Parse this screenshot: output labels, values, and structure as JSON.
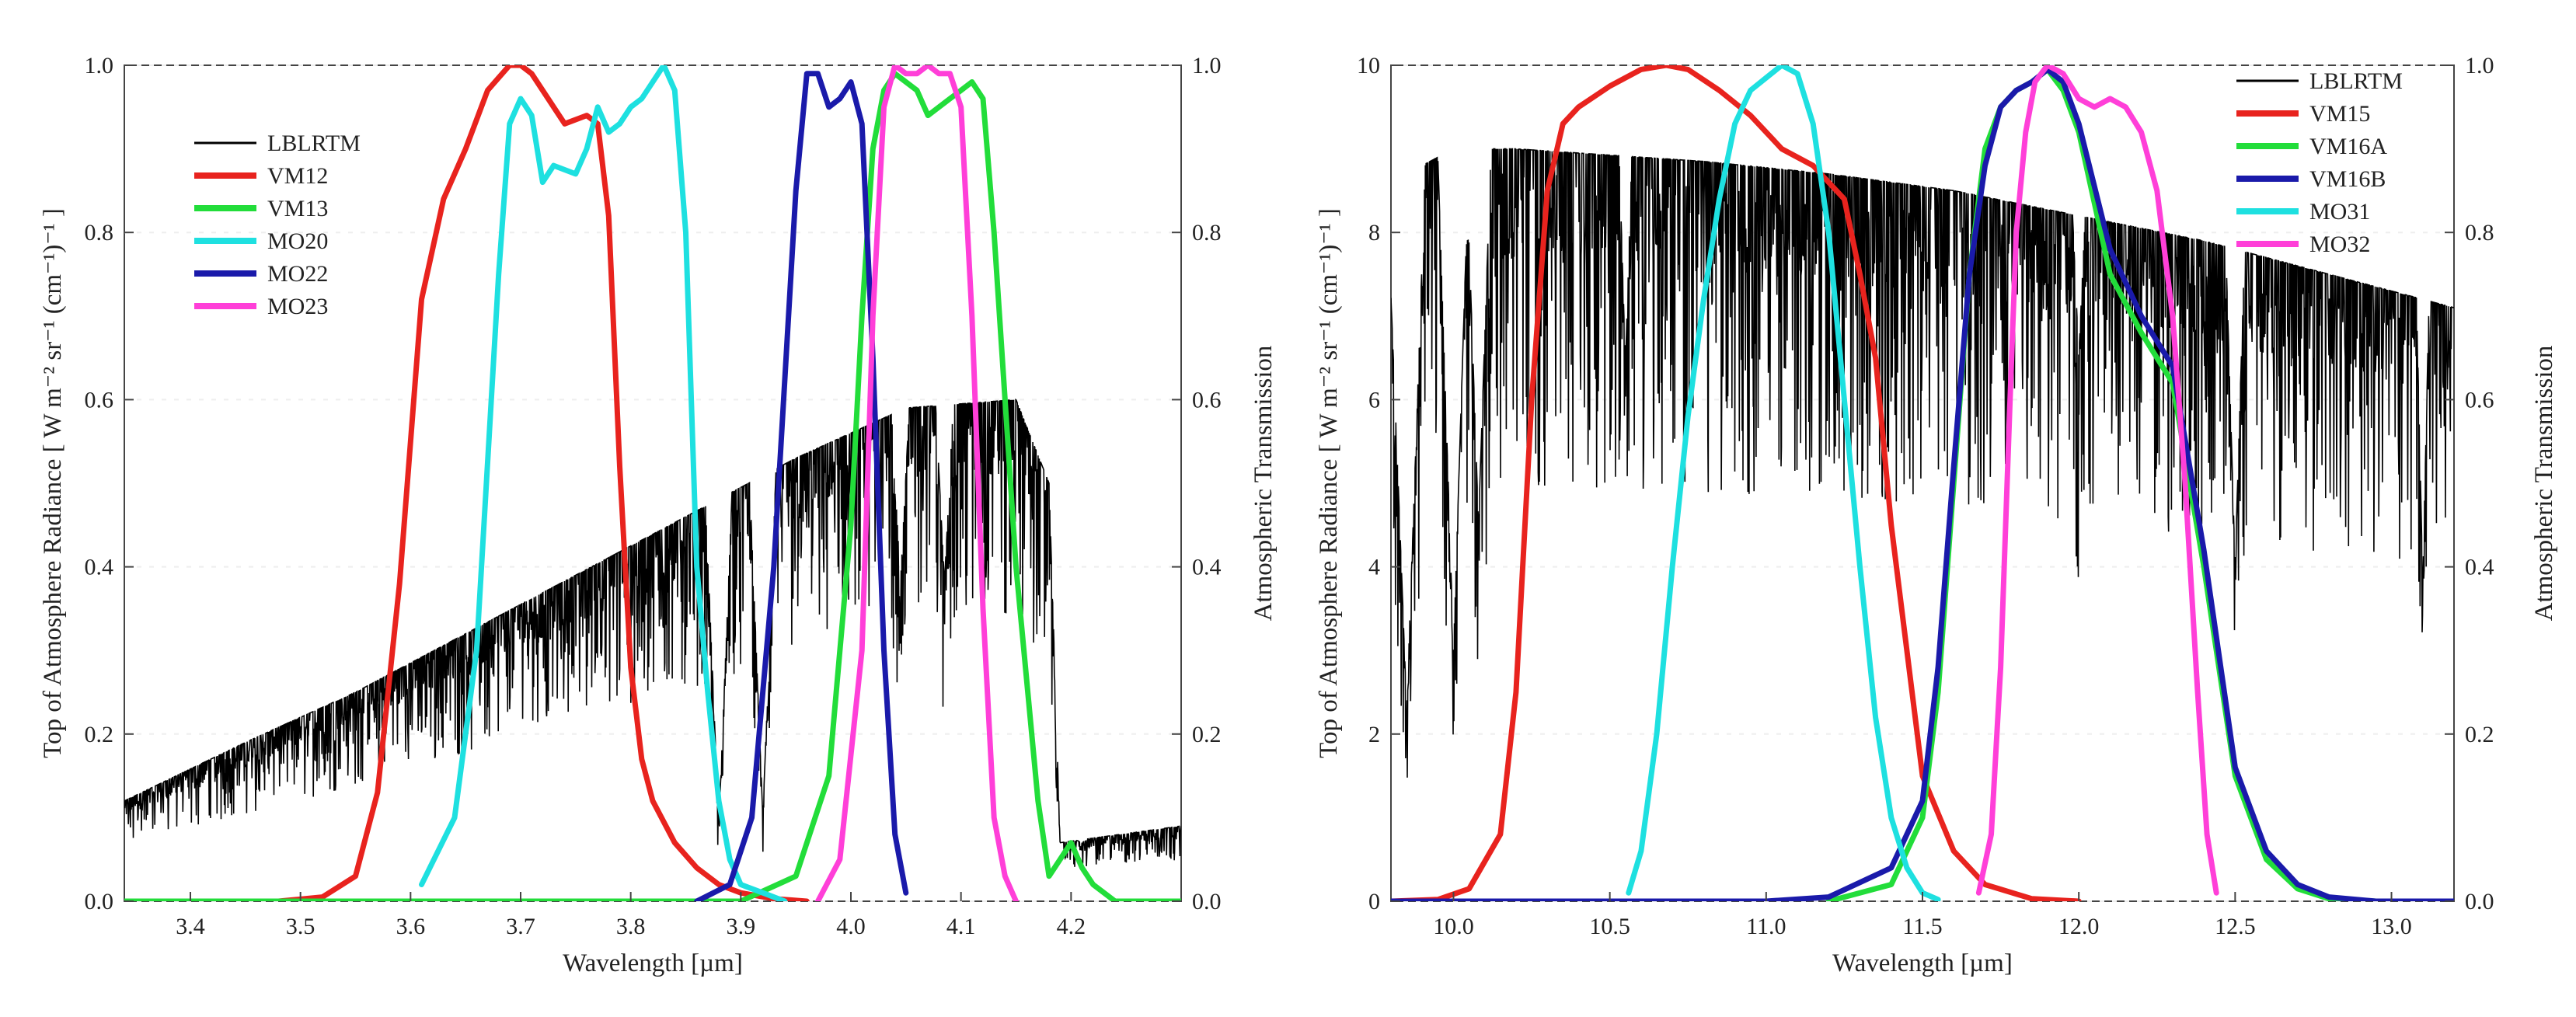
{
  "colors": {
    "LBLRTM": "#000000",
    "VM12": "#e8231e",
    "VM13": "#22dd3a",
    "MO20": "#1ee0e0",
    "MO22": "#1a1aaa",
    "MO23": "#ff3fd8",
    "VM15": "#e8231e",
    "VM16A": "#22dd3a",
    "VM16B": "#1a1aaa",
    "MO31": "#1ee0e0",
    "MO32": "#ff3fd8"
  },
  "chart_data": [
    {
      "type": "line",
      "xlabel": "Wavelength  [µm]",
      "ylabel": "Top of Atmosphere Radiance  [ W m⁻² sr⁻¹ (cm⁻¹)⁻¹ ]",
      "y2label": "Atmospheric Transmission",
      "xlim": [
        3.34,
        4.3
      ],
      "ylim": [
        0,
        1.0
      ],
      "y2lim": [
        0,
        1.0
      ],
      "xticks": [
        "3.4",
        "3.5",
        "3.6",
        "3.7",
        "3.8",
        "3.9",
        "4.0",
        "4.1",
        "4.2"
      ],
      "yticks": [
        "0.0",
        "0.2",
        "0.4",
        "0.6",
        "0.8",
        "1.0"
      ],
      "y2ticks": [
        "0.0",
        "0.2",
        "0.4",
        "0.6",
        "0.8",
        "1.0"
      ],
      "legend": [
        "LBLRTM",
        "VM12",
        "VM13",
        "MO20",
        "MO22",
        "MO23"
      ],
      "legend_position": "top-left",
      "series": [
        {
          "name": "LBLRTM",
          "style": "spectrum",
          "x": [
            3.34,
            3.45,
            3.55,
            3.65,
            3.75,
            3.85,
            3.95,
            4.05,
            4.15,
            4.18,
            4.19,
            4.3
          ],
          "values": [
            0.12,
            0.19,
            0.25,
            0.32,
            0.39,
            0.46,
            0.53,
            0.59,
            0.6,
            0.5,
            0.07,
            0.09
          ],
          "dips": [
            [
              3.88,
              0.09,
              0.012
            ],
            [
              3.92,
              0.1,
              0.012
            ],
            [
              4.045,
              0.38,
              0.008
            ],
            [
              4.085,
              0.38,
              0.008
            ],
            [
              4.21,
              0.07,
              0.005
            ]
          ]
        },
        {
          "name": "VM12",
          "x": [
            3.48,
            3.52,
            3.55,
            3.57,
            3.59,
            3.61,
            3.63,
            3.65,
            3.67,
            3.69,
            3.7,
            3.71,
            3.73,
            3.74,
            3.76,
            3.77,
            3.78,
            3.79,
            3.8,
            3.81,
            3.82,
            3.84,
            3.86,
            3.88,
            3.9,
            3.93,
            3.96
          ],
          "values": [
            0.0,
            0.005,
            0.03,
            0.13,
            0.38,
            0.72,
            0.84,
            0.9,
            0.97,
            1.0,
            1.0,
            0.99,
            0.95,
            0.93,
            0.94,
            0.93,
            0.82,
            0.52,
            0.28,
            0.17,
            0.12,
            0.07,
            0.04,
            0.02,
            0.01,
            0.003,
            0.0
          ]
        },
        {
          "name": "VM13",
          "x": [
            3.34,
            3.9,
            3.95,
            3.98,
            4.0,
            4.01,
            4.02,
            4.03,
            4.04,
            4.06,
            4.07,
            4.09,
            4.1,
            4.11,
            4.12,
            4.13,
            4.15,
            4.17,
            4.18,
            4.19,
            4.2,
            4.21,
            4.22,
            4.24,
            4.3
          ],
          "values": [
            0.0,
            0.0,
            0.03,
            0.15,
            0.45,
            0.7,
            0.9,
            0.97,
            0.99,
            0.97,
            0.94,
            0.96,
            0.97,
            0.98,
            0.96,
            0.8,
            0.4,
            0.12,
            0.03,
            0.05,
            0.07,
            0.04,
            0.02,
            0.0,
            0.0
          ]
        },
        {
          "name": "MO20",
          "x": [
            3.61,
            3.64,
            3.66,
            3.68,
            3.69,
            3.7,
            3.71,
            3.72,
            3.73,
            3.75,
            3.76,
            3.77,
            3.78,
            3.79,
            3.8,
            3.81,
            3.82,
            3.83,
            3.84,
            3.85,
            3.86,
            3.87,
            3.88,
            3.89,
            3.9,
            3.92,
            3.94
          ],
          "values": [
            0.02,
            0.1,
            0.3,
            0.75,
            0.93,
            0.96,
            0.94,
            0.86,
            0.88,
            0.87,
            0.9,
            0.95,
            0.92,
            0.93,
            0.95,
            0.96,
            0.98,
            1.0,
            0.97,
            0.8,
            0.4,
            0.25,
            0.12,
            0.05,
            0.02,
            0.01,
            0.0
          ]
        },
        {
          "name": "MO22",
          "x": [
            3.86,
            3.89,
            3.91,
            3.93,
            3.95,
            3.96,
            3.97,
            3.98,
            3.99,
            4.0,
            4.01,
            4.02,
            4.03,
            4.04,
            4.05
          ],
          "values": [
            0.0,
            0.02,
            0.1,
            0.4,
            0.85,
            0.99,
            0.99,
            0.95,
            0.96,
            0.98,
            0.93,
            0.65,
            0.3,
            0.08,
            0.01
          ]
        },
        {
          "name": "MO23",
          "x": [
            3.97,
            3.99,
            4.01,
            4.02,
            4.03,
            4.04,
            4.05,
            4.06,
            4.07,
            4.08,
            4.09,
            4.1,
            4.11,
            4.12,
            4.13,
            4.14,
            4.15
          ],
          "values": [
            0.0,
            0.05,
            0.3,
            0.7,
            0.95,
            1.0,
            0.99,
            0.99,
            1.0,
            0.99,
            0.99,
            0.95,
            0.7,
            0.35,
            0.1,
            0.03,
            0.0
          ]
        }
      ]
    },
    {
      "type": "line",
      "xlabel": "Wavelength  [µm]",
      "ylabel": "Top of Atmosphere Radiance  [ W m⁻² sr⁻¹ (cm⁻¹)⁻¹ ]",
      "y2label": "Atmospheric Transmission",
      "xlim": [
        9.8,
        13.2
      ],
      "ylim": [
        0,
        10
      ],
      "y2lim": [
        0,
        1.0
      ],
      "xticks": [
        "10.0",
        "10.5",
        "11.0",
        "11.5",
        "12.0",
        "12.5",
        "13.0"
      ],
      "yticks": [
        "0",
        "2",
        "4",
        "6",
        "8",
        "10"
      ],
      "y2ticks": [
        "0.0",
        "0.2",
        "0.4",
        "0.6",
        "0.8",
        "1.0"
      ],
      "legend": [
        "LBLRTM",
        "VM15",
        "VM16A",
        "VM16B",
        "MO31",
        "MO32"
      ],
      "legend_position": "top-right",
      "series": [
        {
          "name": "LBLRTM",
          "style": "spectrum",
          "x": [
            9.8,
            9.9,
            10.0,
            10.1,
            10.2,
            10.4,
            10.8,
            11.2,
            11.6,
            12.0,
            12.4,
            12.8,
            13.2
          ],
          "values": [
            8.2,
            8.8,
            9.0,
            9.0,
            9.0,
            8.95,
            8.85,
            8.7,
            8.5,
            8.2,
            7.9,
            7.5,
            7.1
          ],
          "dips": [
            [
              9.85,
              2.3,
              0.06
            ],
            [
              10.0,
              3.0,
              0.05
            ],
            [
              10.08,
              4.5,
              0.04
            ],
            [
              10.55,
              6.4,
              0.02
            ],
            [
              12.0,
              6.5,
              0.02
            ],
            [
              12.5,
              4.0,
              0.03
            ],
            [
              13.1,
              3.8,
              0.02
            ]
          ]
        },
        {
          "name": "VM15",
          "x": [
            9.8,
            9.95,
            10.05,
            10.15,
            10.2,
            10.25,
            10.3,
            10.35,
            10.4,
            10.5,
            10.6,
            10.68,
            10.75,
            10.85,
            10.95,
            11.05,
            11.15,
            11.25,
            11.3,
            11.35,
            11.4,
            11.45,
            11.5,
            11.6,
            11.7,
            11.85,
            12.0
          ],
          "values": [
            0.0,
            0.02,
            0.15,
            0.8,
            2.5,
            6.0,
            8.5,
            9.3,
            9.5,
            9.75,
            9.95,
            10.0,
            9.95,
            9.7,
            9.4,
            9.0,
            8.8,
            8.4,
            7.5,
            6.5,
            4.5,
            3.0,
            1.5,
            0.6,
            0.2,
            0.03,
            0.0
          ]
        },
        {
          "name": "VM16A",
          "x": [
            11.2,
            11.4,
            11.5,
            11.55,
            11.6,
            11.65,
            11.7,
            11.75,
            11.8,
            11.85,
            11.9,
            11.95,
            12.0,
            12.1,
            12.2,
            12.3,
            12.4,
            12.5,
            12.6,
            12.7,
            12.8,
            12.95
          ],
          "values": [
            0.0,
            0.2,
            1.0,
            2.5,
            5.0,
            7.5,
            9.0,
            9.5,
            9.7,
            9.8,
            9.95,
            9.7,
            9.2,
            7.5,
            6.8,
            6.2,
            4.0,
            1.5,
            0.5,
            0.15,
            0.03,
            0.0
          ]
        },
        {
          "name": "VM16B",
          "x": [
            9.8,
            11.0,
            11.2,
            11.4,
            11.5,
            11.55,
            11.6,
            11.65,
            11.7,
            11.75,
            11.8,
            11.85,
            11.9,
            11.95,
            12.0,
            12.1,
            12.2,
            12.3,
            12.4,
            12.5,
            12.6,
            12.7,
            12.8,
            12.95,
            13.2
          ],
          "values": [
            0.0,
            0.0,
            0.05,
            0.4,
            1.2,
            2.8,
            5.2,
            7.5,
            8.8,
            9.5,
            9.7,
            9.8,
            9.95,
            9.8,
            9.3,
            7.8,
            7.0,
            6.4,
            4.2,
            1.6,
            0.6,
            0.2,
            0.05,
            0.0,
            0.0
          ]
        },
        {
          "name": "MO31",
          "x": [
            10.56,
            10.6,
            10.65,
            10.7,
            10.75,
            10.8,
            10.85,
            10.9,
            10.95,
            11.0,
            11.05,
            11.1,
            11.15,
            11.2,
            11.25,
            11.3,
            11.35,
            11.4,
            11.45,
            11.5,
            11.55
          ],
          "values": [
            0.1,
            0.6,
            2.0,
            4.0,
            5.8,
            7.2,
            8.4,
            9.3,
            9.7,
            9.85,
            10.0,
            9.9,
            9.3,
            8.0,
            6.0,
            4.0,
            2.2,
            1.0,
            0.4,
            0.1,
            0.02
          ]
        },
        {
          "name": "MO32",
          "x": [
            11.68,
            11.72,
            11.75,
            11.78,
            11.8,
            11.83,
            11.86,
            11.9,
            11.95,
            12.0,
            12.05,
            12.1,
            12.15,
            12.2,
            12.25,
            12.3,
            12.34,
            12.38,
            12.41,
            12.44
          ],
          "values": [
            0.1,
            0.8,
            2.8,
            6.0,
            8.0,
            9.2,
            9.8,
            10.0,
            9.9,
            9.6,
            9.5,
            9.6,
            9.5,
            9.2,
            8.5,
            7.0,
            5.0,
            2.5,
            0.8,
            0.1
          ]
        }
      ]
    }
  ]
}
